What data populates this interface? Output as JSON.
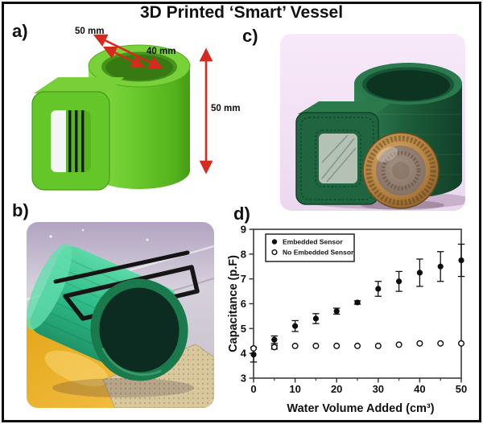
{
  "figure": {
    "title": "3D Printed ‘Smart’ Vessel",
    "panel_labels": {
      "a": "a)",
      "b": "b)",
      "c": "c)",
      "d": "d)"
    },
    "panel_a": {
      "outer_diameter_label": "50 mm",
      "inner_diameter_label": "40 mm",
      "height_label": "50 mm"
    },
    "colors": {
      "cad_green": "#68c829",
      "printed_teal": "#35c08d",
      "vessel_dark_green": "#1b5a39",
      "annotation_red": "#d62a1e",
      "photo_background_pink": "#f3e2f5",
      "coin_gold": "#b9854a",
      "trace_black": "#151515"
    }
  },
  "chart_data": {
    "type": "scatter",
    "title": "",
    "xlabel": "Water Volume Added (cm³)",
    "ylabel": "Capacitance (p.F)",
    "xlim": [
      0,
      50
    ],
    "ylim": [
      3,
      9
    ],
    "x_ticks": [
      0,
      10,
      20,
      30,
      40,
      50
    ],
    "x_minor_ticks": [
      5,
      15,
      25,
      35,
      45
    ],
    "y_ticks": [
      3,
      4,
      5,
      6,
      7,
      8,
      9
    ],
    "grid": false,
    "legend_position": "top-left",
    "x": [
      0,
      5,
      10,
      15,
      20,
      25,
      30,
      35,
      40,
      45,
      50
    ],
    "series": [
      {
        "name": "Embedded Sensor",
        "marker": "filled-circle",
        "values": [
          3.95,
          4.55,
          5.1,
          5.4,
          5.7,
          6.05,
          6.6,
          6.9,
          7.25,
          7.5,
          7.75
        ],
        "errors": [
          0.3,
          0.15,
          0.22,
          0.2,
          0.12,
          0.07,
          0.3,
          0.4,
          0.55,
          0.6,
          0.65
        ]
      },
      {
        "name": "No Embedded Sensor",
        "marker": "open-circle",
        "values": [
          4.2,
          4.25,
          4.3,
          4.3,
          4.3,
          4.3,
          4.3,
          4.35,
          4.4,
          4.4,
          4.4
        ],
        "errors": [
          0,
          0.08,
          0,
          0,
          0,
          0,
          0,
          0,
          0,
          0,
          0
        ]
      }
    ]
  }
}
